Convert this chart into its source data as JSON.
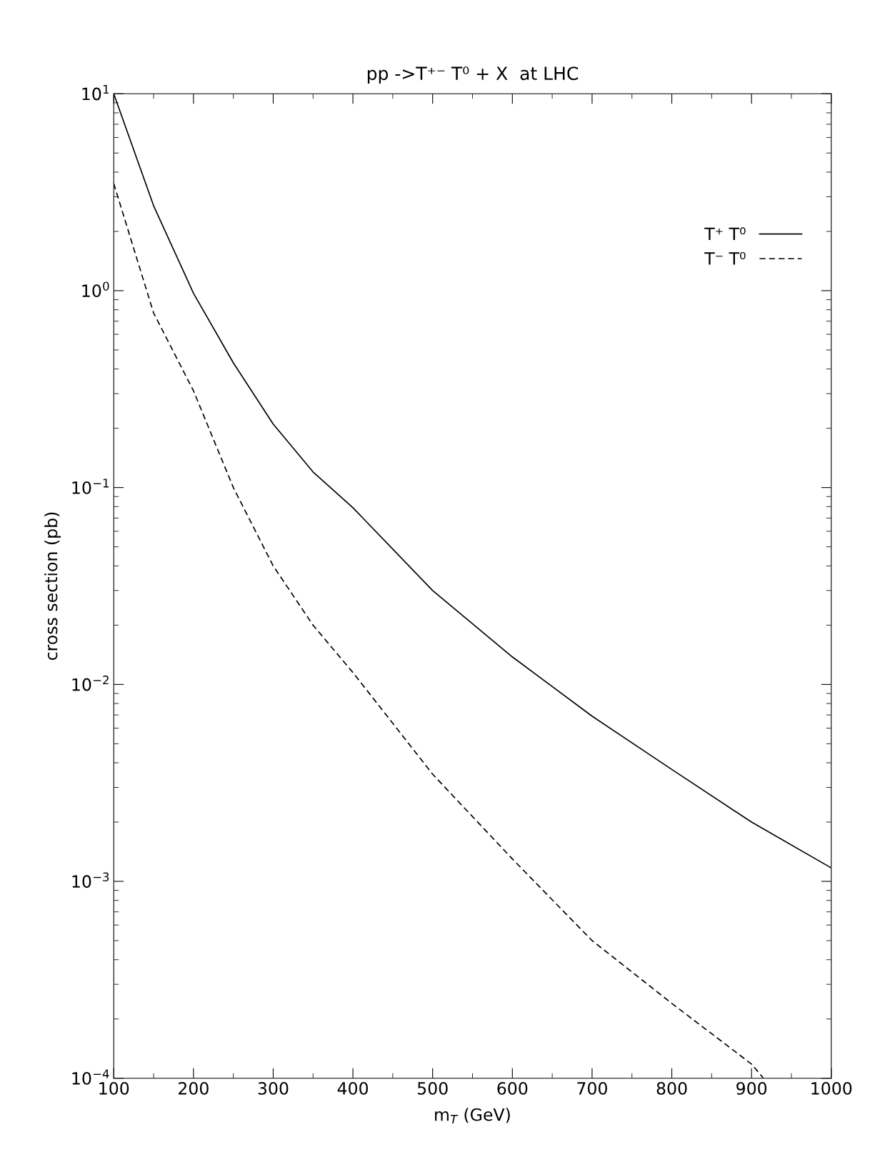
{
  "chart_data": {
    "type": "line",
    "title": "pp ->T⁺⁻ T⁰ + X  at LHC",
    "xlabel": "m$_{T}$ (GeV)",
    "ylabel": "cross section (pb)",
    "xlim": [
      100,
      1000
    ],
    "xticks": [
      100,
      200,
      300,
      400,
      500,
      600,
      700,
      800,
      900,
      1000
    ],
    "ylim": [
      0.0001,
      10
    ],
    "yticks": [
      {
        "value": 0.0001,
        "label": "10$^{−4}$"
      },
      {
        "value": 0.001,
        "label": "10$^{−3}$"
      },
      {
        "value": 0.01,
        "label": "10$^{−2}$"
      },
      {
        "value": 0.1,
        "label": "10$^{−1}$"
      },
      {
        "value": 1,
        "label": "10$^{0}$"
      },
      {
        "value": 10,
        "label": "10$^{1}$"
      }
    ],
    "log": "y",
    "grid": false,
    "legend": "top right",
    "marker": "none",
    "series": [
      {
        "name": "T⁺ T⁰",
        "color": "#000000",
        "line_style": "solid",
        "x": [
          100,
          150,
          200,
          250,
          300,
          350,
          400,
          500,
          600,
          700,
          800,
          900,
          1000
        ],
        "values": [
          10,
          2.7,
          0.97,
          0.43,
          0.21,
          0.12,
          0.079,
          0.03,
          0.0138,
          0.0069,
          0.0037,
          0.002,
          0.00117
        ]
      },
      {
        "name": "T⁻ T⁰",
        "color": "#000000",
        "line_style": "dashed",
        "x": [
          100,
          150,
          200,
          250,
          300,
          350,
          400,
          500,
          600,
          700,
          800,
          900,
          915
        ],
        "values": [
          3.5,
          0.77,
          0.31,
          0.1,
          0.04,
          0.02,
          0.0115,
          0.0035,
          0.0013,
          0.0005,
          0.00024,
          0.000118,
          0.0001
        ]
      }
    ]
  }
}
